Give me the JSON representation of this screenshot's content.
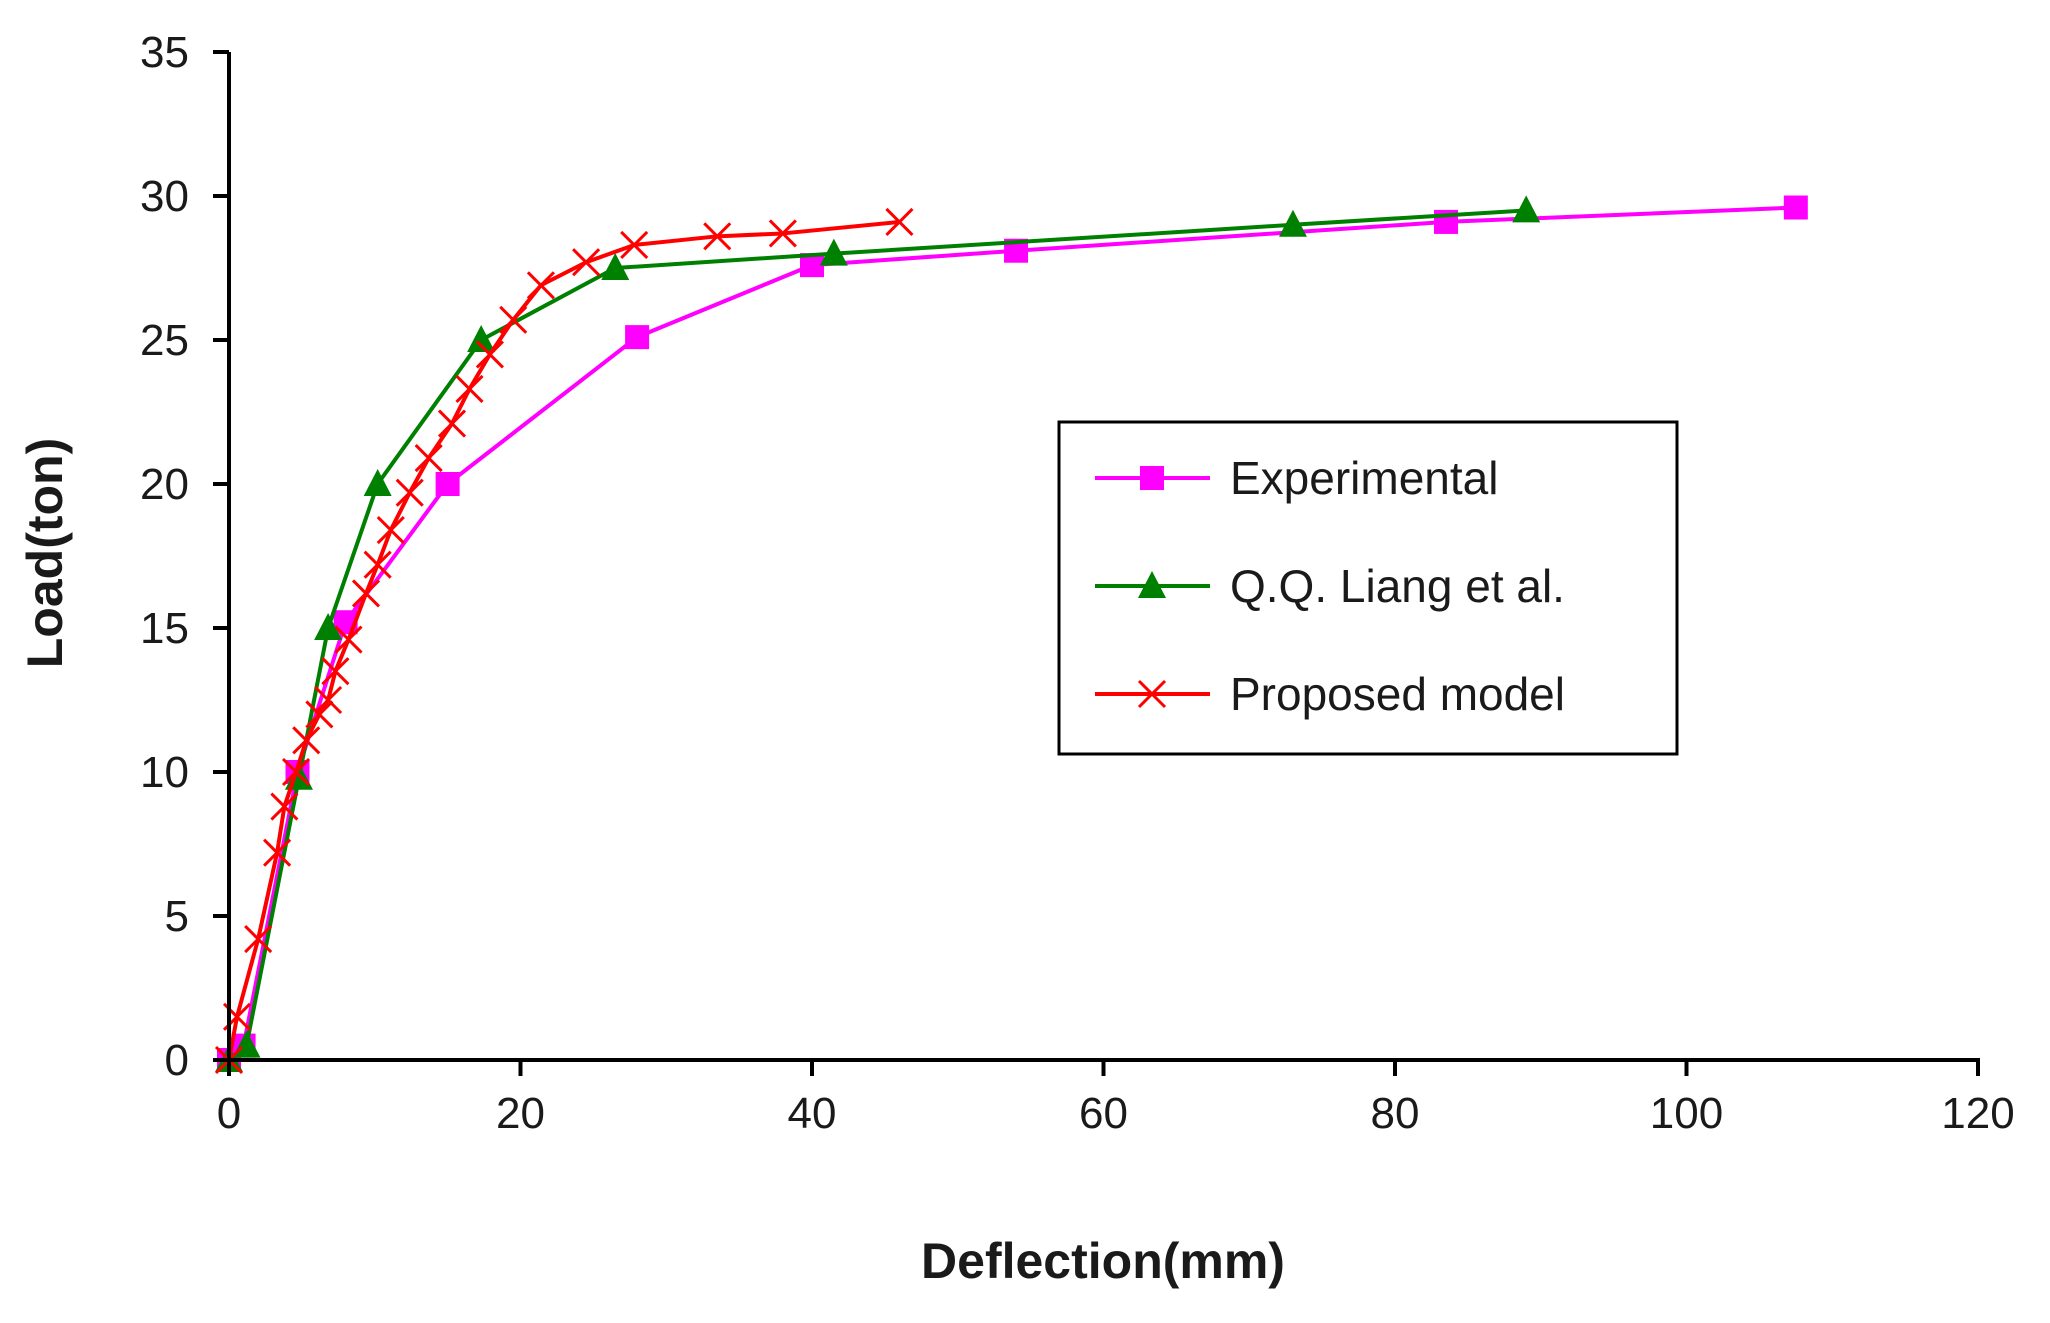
{
  "chart_data": {
    "type": "line",
    "title": "",
    "xlabel": "Deflection(mm)",
    "ylabel": "Load(ton)",
    "xlim": [
      0,
      120
    ],
    "ylim": [
      0,
      35
    ],
    "xticks": [
      0,
      20,
      40,
      60,
      80,
      100,
      120
    ],
    "yticks": [
      0,
      5,
      10,
      15,
      20,
      25,
      30,
      35
    ],
    "grid": false,
    "legend_position": "center-right",
    "series": [
      {
        "name": "Experimental",
        "color": "#ff00ff",
        "marker": "square",
        "x": [
          0,
          1,
          4.7,
          8,
          15,
          28,
          40,
          54,
          83.5,
          107.5
        ],
        "y": [
          0,
          0.5,
          10,
          15.2,
          20,
          25.1,
          27.6,
          28.1,
          29.1,
          29.6
        ]
      },
      {
        "name": "Q.Q. Liang et al.",
        "color": "#008000",
        "marker": "triangle",
        "x": [
          0,
          1.2,
          4.8,
          6.8,
          10.2,
          17.3,
          26.5,
          41.5,
          73,
          89
        ],
        "y": [
          0,
          0.5,
          9.8,
          15,
          20,
          25,
          27.5,
          28,
          29,
          29.5
        ]
      },
      {
        "name": "Proposed model",
        "color": "#ff0000",
        "marker": "x",
        "x": [
          0,
          0.55,
          2,
          3.3,
          3.8,
          4.6,
          5.3,
          6.2,
          6.8,
          7.3,
          8.2,
          9.4,
          10.2,
          11.1,
          12.4,
          13.7,
          15.3,
          16.5,
          17.9,
          19.5,
          21.4,
          24.5,
          27.8,
          33.5,
          38,
          46
        ],
        "y": [
          0,
          1.5,
          4.2,
          7.2,
          8.8,
          10,
          11.1,
          12,
          12.5,
          13.5,
          14.6,
          16.2,
          17.2,
          18.4,
          19.7,
          20.9,
          22.1,
          23.3,
          24.5,
          25.7,
          26.9,
          27.7,
          28.3,
          28.6,
          28.7,
          29.1
        ]
      }
    ]
  }
}
